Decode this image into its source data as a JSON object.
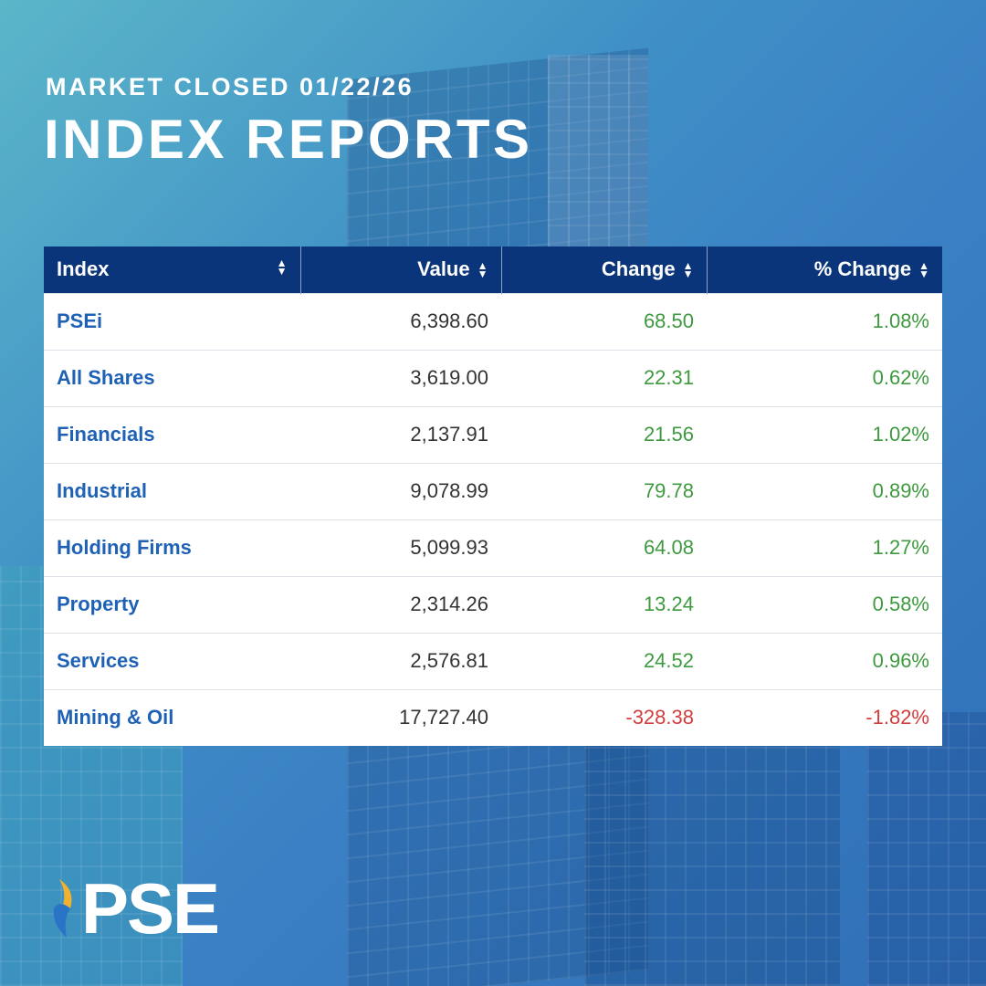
{
  "header": {
    "subtitle": "MARKET CLOSED 01/22/26",
    "title": "INDEX REPORTS"
  },
  "table": {
    "columns": [
      "Index",
      "Value",
      "Change",
      "% Change"
    ],
    "rows": [
      {
        "index": "PSEi",
        "value": "6,398.60",
        "change": "68.50",
        "pct": "1.08%",
        "dir": "up"
      },
      {
        "index": "All Shares",
        "value": "3,619.00",
        "change": "22.31",
        "pct": "0.62%",
        "dir": "up"
      },
      {
        "index": "Financials",
        "value": "2,137.91",
        "change": "21.56",
        "pct": "1.02%",
        "dir": "up"
      },
      {
        "index": "Industrial",
        "value": "9,078.99",
        "change": "79.78",
        "pct": "0.89%",
        "dir": "up"
      },
      {
        "index": "Holding Firms",
        "value": "5,099.93",
        "change": "64.08",
        "pct": "1.27%",
        "dir": "up"
      },
      {
        "index": "Property",
        "value": "2,314.26",
        "change": "13.24",
        "pct": "0.58%",
        "dir": "up"
      },
      {
        "index": "Services",
        "value": "2,576.81",
        "change": "24.52",
        "pct": "0.96%",
        "dir": "up"
      },
      {
        "index": "Mining & Oil",
        "value": "17,727.40",
        "change": "-328.38",
        "pct": "-1.82%",
        "dir": "down"
      }
    ]
  },
  "colors": {
    "header_bg": "#0b357a",
    "index_name": "#1f62b5",
    "positive": "#3e9a3f",
    "negative": "#d43d3d"
  },
  "logo": {
    "text": "PSE"
  }
}
